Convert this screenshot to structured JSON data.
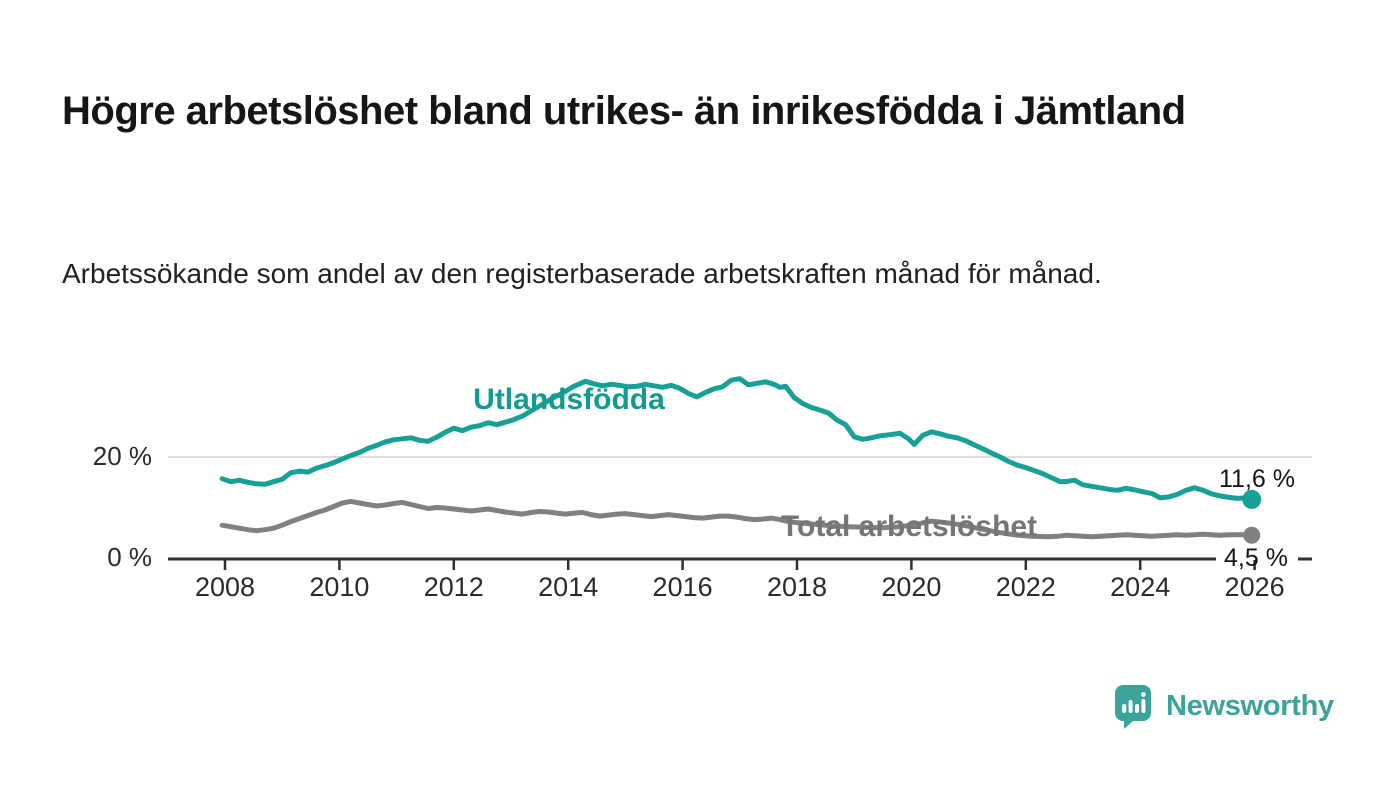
{
  "header": {
    "title": "Högre arbetslöshet bland utrikes- än inrikesfödda i Jämtland",
    "subtitle": "Arbetssökande som andel av den registerbaserade arbetskraften månad för månad."
  },
  "chart_data": {
    "type": "line",
    "unit": "%",
    "x_ticks": [
      2008,
      2010,
      2012,
      2014,
      2016,
      2018,
      2020,
      2022,
      2024,
      2026
    ],
    "y_ticks": [
      {
        "value": 0,
        "label": "0 %"
      },
      {
        "value": 20,
        "label": "20 %"
      }
    ],
    "x_range": [
      2007.9,
      2026.6
    ],
    "y_range": [
      0,
      38
    ],
    "grid": "horizontal gridline at 20 % only",
    "legend_position": "inline labels next to lines",
    "colors": {
      "axis": "#2f2f2f",
      "grid": "#dcdcdc",
      "tick_text": "#2b2b2b",
      "value_text": "#161616"
    },
    "series": [
      {
        "name": "Utlandsfödda",
        "color": "#16a096",
        "label_color": "#0f9c90",
        "end_value": 11.6,
        "end_label": "11,6 %",
        "points": [
          [
            2007.95,
            15.7
          ],
          [
            2008.1,
            15.1
          ],
          [
            2008.25,
            15.4
          ],
          [
            2008.4,
            15.0
          ],
          [
            2008.55,
            14.7
          ],
          [
            2008.7,
            14.6
          ],
          [
            2008.85,
            15.1
          ],
          [
            2009.0,
            15.6
          ],
          [
            2009.15,
            16.9
          ],
          [
            2009.3,
            17.2
          ],
          [
            2009.45,
            17.0
          ],
          [
            2009.6,
            17.8
          ],
          [
            2009.75,
            18.3
          ],
          [
            2009.9,
            18.9
          ],
          [
            2010.05,
            19.6
          ],
          [
            2010.2,
            20.3
          ],
          [
            2010.35,
            20.9
          ],
          [
            2010.5,
            21.7
          ],
          [
            2010.65,
            22.3
          ],
          [
            2010.8,
            23.0
          ],
          [
            2010.95,
            23.4
          ],
          [
            2011.1,
            23.6
          ],
          [
            2011.25,
            23.8
          ],
          [
            2011.4,
            23.3
          ],
          [
            2011.55,
            23.1
          ],
          [
            2011.7,
            23.9
          ],
          [
            2011.85,
            24.9
          ],
          [
            2012.0,
            25.7
          ],
          [
            2012.15,
            25.2
          ],
          [
            2012.3,
            25.9
          ],
          [
            2012.45,
            26.2
          ],
          [
            2012.6,
            26.8
          ],
          [
            2012.75,
            26.4
          ],
          [
            2012.9,
            26.9
          ],
          [
            2013.05,
            27.4
          ],
          [
            2013.2,
            28.1
          ],
          [
            2013.35,
            29.1
          ],
          [
            2013.5,
            30.1
          ],
          [
            2013.65,
            31.1
          ],
          [
            2013.8,
            32.1
          ],
          [
            2013.95,
            33.0
          ],
          [
            2014.1,
            34.0
          ],
          [
            2014.3,
            35.0
          ],
          [
            2014.45,
            34.5
          ],
          [
            2014.6,
            34.1
          ],
          [
            2014.75,
            34.4
          ],
          [
            2014.9,
            34.2
          ],
          [
            2015.05,
            33.9
          ],
          [
            2015.2,
            34.0
          ],
          [
            2015.35,
            34.4
          ],
          [
            2015.5,
            34.1
          ],
          [
            2015.65,
            33.8
          ],
          [
            2015.8,
            34.2
          ],
          [
            2015.95,
            33.6
          ],
          [
            2016.1,
            32.6
          ],
          [
            2016.25,
            31.9
          ],
          [
            2016.4,
            32.8
          ],
          [
            2016.55,
            33.5
          ],
          [
            2016.7,
            33.9
          ],
          [
            2016.85,
            35.2
          ],
          [
            2017.0,
            35.5
          ],
          [
            2017.15,
            34.3
          ],
          [
            2017.3,
            34.6
          ],
          [
            2017.45,
            34.9
          ],
          [
            2017.6,
            34.4
          ],
          [
            2017.7,
            33.8
          ],
          [
            2017.8,
            34.0
          ],
          [
            2017.95,
            31.8
          ],
          [
            2018.1,
            30.6
          ],
          [
            2018.25,
            29.8
          ],
          [
            2018.4,
            29.3
          ],
          [
            2018.55,
            28.7
          ],
          [
            2018.7,
            27.3
          ],
          [
            2018.85,
            26.4
          ],
          [
            2019.0,
            24.0
          ],
          [
            2019.15,
            23.5
          ],
          [
            2019.3,
            23.8
          ],
          [
            2019.45,
            24.2
          ],
          [
            2019.6,
            24.4
          ],
          [
            2019.8,
            24.7
          ],
          [
            2019.95,
            23.6
          ],
          [
            2020.05,
            22.5
          ],
          [
            2020.2,
            24.3
          ],
          [
            2020.35,
            25.0
          ],
          [
            2020.5,
            24.6
          ],
          [
            2020.65,
            24.1
          ],
          [
            2020.8,
            23.8
          ],
          [
            2020.95,
            23.2
          ],
          [
            2021.1,
            22.4
          ],
          [
            2021.25,
            21.6
          ],
          [
            2021.4,
            20.8
          ],
          [
            2021.55,
            20.0
          ],
          [
            2021.7,
            19.1
          ],
          [
            2021.85,
            18.4
          ],
          [
            2022.0,
            17.9
          ],
          [
            2022.15,
            17.3
          ],
          [
            2022.3,
            16.7
          ],
          [
            2022.45,
            15.9
          ],
          [
            2022.6,
            15.1
          ],
          [
            2022.75,
            15.2
          ],
          [
            2022.85,
            15.4
          ],
          [
            2023.0,
            14.5
          ],
          [
            2023.15,
            14.2
          ],
          [
            2023.3,
            13.9
          ],
          [
            2023.45,
            13.6
          ],
          [
            2023.6,
            13.4
          ],
          [
            2023.75,
            13.8
          ],
          [
            2023.9,
            13.5
          ],
          [
            2024.05,
            13.1
          ],
          [
            2024.2,
            12.8
          ],
          [
            2024.35,
            11.9
          ],
          [
            2024.5,
            12.1
          ],
          [
            2024.65,
            12.6
          ],
          [
            2024.8,
            13.4
          ],
          [
            2024.95,
            13.9
          ],
          [
            2025.1,
            13.4
          ],
          [
            2025.25,
            12.7
          ],
          [
            2025.4,
            12.3
          ],
          [
            2025.55,
            12.0
          ],
          [
            2025.7,
            11.8
          ],
          [
            2025.85,
            11.9
          ],
          [
            2025.95,
            11.6
          ]
        ]
      },
      {
        "name": "Total arbetslöshet",
        "color": "#808080",
        "label_color": "#757575",
        "end_value": 4.5,
        "end_label": "4,5 %",
        "points": [
          [
            2007.95,
            6.5
          ],
          [
            2008.1,
            6.2
          ],
          [
            2008.25,
            5.9
          ],
          [
            2008.4,
            5.6
          ],
          [
            2008.55,
            5.4
          ],
          [
            2008.7,
            5.6
          ],
          [
            2008.85,
            5.9
          ],
          [
            2009.0,
            6.5
          ],
          [
            2009.15,
            7.2
          ],
          [
            2009.3,
            7.8
          ],
          [
            2009.45,
            8.4
          ],
          [
            2009.6,
            9.0
          ],
          [
            2009.75,
            9.5
          ],
          [
            2009.9,
            10.2
          ],
          [
            2010.05,
            10.9
          ],
          [
            2010.2,
            11.2
          ],
          [
            2010.35,
            10.9
          ],
          [
            2010.5,
            10.6
          ],
          [
            2010.65,
            10.3
          ],
          [
            2010.8,
            10.5
          ],
          [
            2010.95,
            10.8
          ],
          [
            2011.1,
            11.0
          ],
          [
            2011.25,
            10.6
          ],
          [
            2011.4,
            10.2
          ],
          [
            2011.55,
            9.8
          ],
          [
            2011.7,
            10.0
          ],
          [
            2011.85,
            9.9
          ],
          [
            2012.0,
            9.7
          ],
          [
            2012.15,
            9.5
          ],
          [
            2012.3,
            9.3
          ],
          [
            2012.45,
            9.5
          ],
          [
            2012.6,
            9.7
          ],
          [
            2012.75,
            9.4
          ],
          [
            2012.9,
            9.1
          ],
          [
            2013.05,
            8.9
          ],
          [
            2013.2,
            8.7
          ],
          [
            2013.35,
            9.0
          ],
          [
            2013.5,
            9.2
          ],
          [
            2013.65,
            9.1
          ],
          [
            2013.8,
            8.9
          ],
          [
            2013.95,
            8.7
          ],
          [
            2014.1,
            8.9
          ],
          [
            2014.25,
            9.0
          ],
          [
            2014.4,
            8.6
          ],
          [
            2014.55,
            8.3
          ],
          [
            2014.7,
            8.5
          ],
          [
            2014.85,
            8.7
          ],
          [
            2015.0,
            8.8
          ],
          [
            2015.15,
            8.6
          ],
          [
            2015.3,
            8.4
          ],
          [
            2015.45,
            8.2
          ],
          [
            2015.6,
            8.4
          ],
          [
            2015.75,
            8.6
          ],
          [
            2015.9,
            8.4
          ],
          [
            2016.05,
            8.2
          ],
          [
            2016.2,
            8.0
          ],
          [
            2016.35,
            7.9
          ],
          [
            2016.5,
            8.1
          ],
          [
            2016.65,
            8.3
          ],
          [
            2016.8,
            8.3
          ],
          [
            2016.95,
            8.1
          ],
          [
            2017.1,
            7.8
          ],
          [
            2017.25,
            7.6
          ],
          [
            2017.4,
            7.7
          ],
          [
            2017.55,
            7.9
          ],
          [
            2017.7,
            7.6
          ],
          [
            2017.85,
            7.2
          ],
          [
            2018.0,
            7.0
          ],
          [
            2018.3,
            6.7
          ],
          [
            2018.6,
            6.4
          ],
          [
            2018.9,
            6.2
          ],
          [
            2019.2,
            6.1
          ],
          [
            2019.5,
            6.0
          ],
          [
            2019.8,
            6.2
          ],
          [
            2020.1,
            6.7
          ],
          [
            2020.35,
            7.3
          ],
          [
            2020.6,
            7.0
          ],
          [
            2020.9,
            6.5
          ],
          [
            2021.2,
            5.8
          ],
          [
            2021.5,
            5.1
          ],
          [
            2021.8,
            4.6
          ],
          [
            2022.1,
            4.3
          ],
          [
            2022.4,
            4.2
          ],
          [
            2022.55,
            4.3
          ],
          [
            2022.7,
            4.5
          ],
          [
            2022.85,
            4.4
          ],
          [
            2023.0,
            4.3
          ],
          [
            2023.15,
            4.2
          ],
          [
            2023.3,
            4.3
          ],
          [
            2023.45,
            4.4
          ],
          [
            2023.6,
            4.5
          ],
          [
            2023.75,
            4.6
          ],
          [
            2023.9,
            4.5
          ],
          [
            2024.05,
            4.4
          ],
          [
            2024.2,
            4.3
          ],
          [
            2024.35,
            4.4
          ],
          [
            2024.5,
            4.5
          ],
          [
            2024.65,
            4.6
          ],
          [
            2024.8,
            4.5
          ],
          [
            2024.95,
            4.6
          ],
          [
            2025.1,
            4.7
          ],
          [
            2025.25,
            4.6
          ],
          [
            2025.4,
            4.5
          ],
          [
            2025.55,
            4.6
          ],
          [
            2025.7,
            4.6
          ],
          [
            2025.85,
            4.6
          ],
          [
            2025.95,
            4.5
          ]
        ]
      }
    ]
  },
  "footer": {
    "brand": "Newsworthy",
    "brand_color": "#3ba399"
  }
}
